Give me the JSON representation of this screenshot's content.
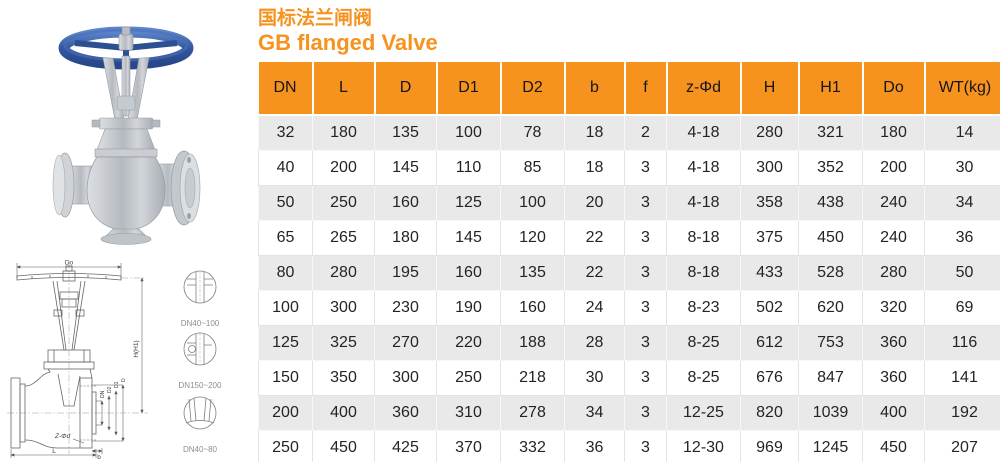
{
  "title": {
    "cn": "国标法兰闸阀",
    "en": "GB flanged Valve"
  },
  "colors": {
    "accent_orange": "#f6921e",
    "row_alt_gray": "#e9e9e9",
    "handwheel_blue": "#33589f",
    "metal_gray": "#c0c5ca"
  },
  "table": {
    "columns": [
      "DN",
      "L",
      "D",
      "D1",
      "D2",
      "b",
      "f",
      "z-Φd",
      "H",
      "H1",
      "Do",
      "WT(kg)"
    ],
    "rows": [
      [
        32,
        180,
        135,
        100,
        78,
        18,
        2,
        "4-18",
        280,
        321,
        180,
        14
      ],
      [
        40,
        200,
        145,
        110,
        85,
        18,
        3,
        "4-18",
        300,
        352,
        200,
        30
      ],
      [
        50,
        250,
        160,
        125,
        100,
        20,
        3,
        "4-18",
        358,
        438,
        240,
        34
      ],
      [
        65,
        265,
        180,
        145,
        120,
        22,
        3,
        "8-18",
        375,
        450,
        240,
        36
      ],
      [
        80,
        280,
        195,
        160,
        135,
        22,
        3,
        "8-18",
        433,
        528,
        280,
        50
      ],
      [
        100,
        300,
        230,
        190,
        160,
        24,
        3,
        "8-23",
        502,
        620,
        320,
        69
      ],
      [
        125,
        325,
        270,
        220,
        188,
        28,
        3,
        "8-25",
        612,
        753,
        360,
        116
      ],
      [
        150,
        350,
        300,
        250,
        218,
        30,
        3,
        "8-25",
        676,
        847,
        360,
        141
      ],
      [
        200,
        400,
        360,
        310,
        278,
        34,
        3,
        "12-25",
        820,
        1039,
        400,
        192
      ],
      [
        250,
        450,
        425,
        370,
        332,
        36,
        3,
        "12-30",
        969,
        1245,
        450,
        207
      ]
    ]
  },
  "drawing": {
    "labels": {
      "handwheel_dia": "Do",
      "height": "H(H1)",
      "bore": "DN",
      "raised_face": "D2",
      "bolt_circle": "D1",
      "flange_od": "D",
      "bolt_holes": "Z-Φd",
      "length": "L",
      "flange_thickness": "b"
    },
    "details": [
      {
        "caption": "DN40~100"
      },
      {
        "caption": "DN150~200"
      },
      {
        "caption": "DN40~80"
      }
    ]
  }
}
